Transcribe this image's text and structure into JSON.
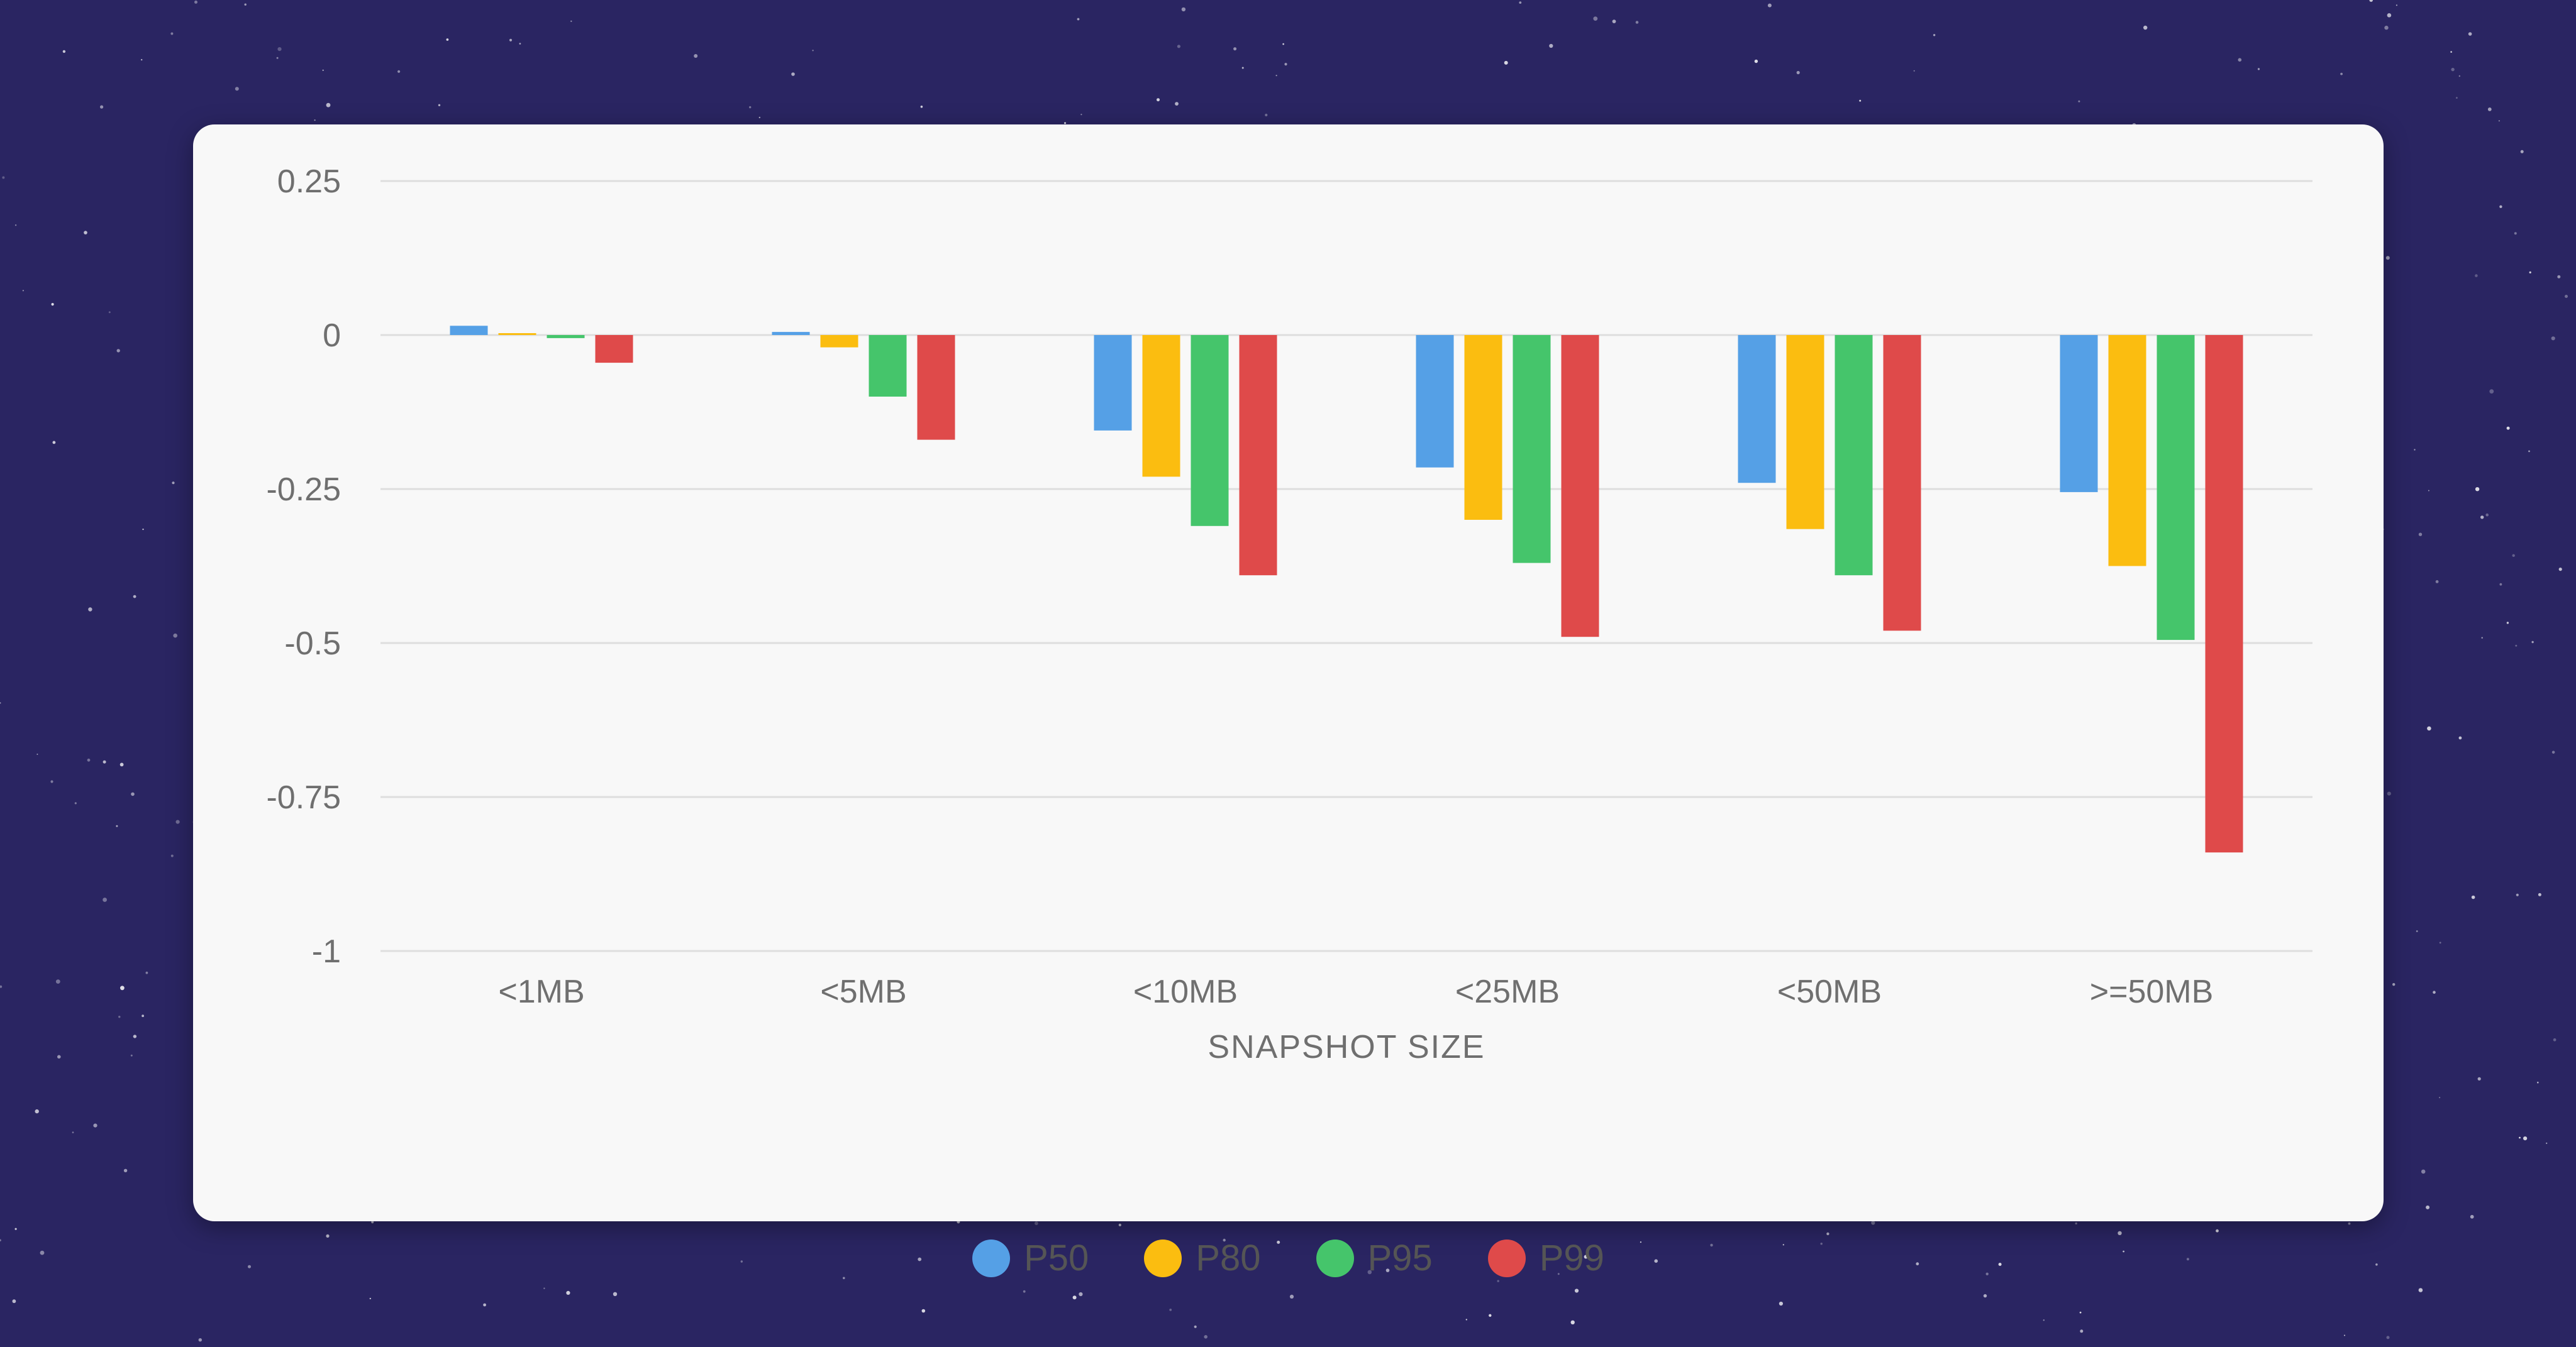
{
  "chart_data": {
    "type": "bar",
    "categories": [
      "<1MB",
      "<5MB",
      "<10MB",
      "<25MB",
      "<50MB",
      ">=50MB"
    ],
    "series": [
      {
        "name": "P50",
        "color": "#55a0e6",
        "values": [
          0.015,
          0.005,
          -0.155,
          -0.215,
          -0.24,
          -0.255
        ]
      },
      {
        "name": "P80",
        "color": "#fbbd10",
        "values": [
          0.0,
          -0.02,
          -0.23,
          -0.3,
          -0.315,
          -0.375
        ]
      },
      {
        "name": "P95",
        "color": "#45c56b",
        "values": [
          -0.005,
          -0.1,
          -0.31,
          -0.37,
          -0.39,
          -0.495
        ]
      },
      {
        "name": "P99",
        "color": "#df4a4a",
        "values": [
          -0.045,
          -0.17,
          -0.39,
          -0.49,
          -0.48,
          -0.84
        ]
      }
    ],
    "y_ticks": [
      "0.25",
      "0",
      "-0.25",
      "-0.5",
      "-0.75",
      "-1"
    ],
    "y_tick_values": [
      0.25,
      0,
      -0.25,
      -0.5,
      -0.75,
      -1
    ],
    "ylim": [
      -1,
      0.25
    ],
    "xlabel": "SNAPSHOT SIZE",
    "ylabel": "",
    "grid": true,
    "legend_position": "bottom-center"
  }
}
